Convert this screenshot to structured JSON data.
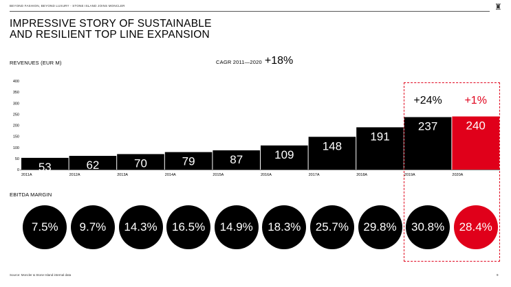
{
  "header": {
    "breadcrumb": "BEYOND FASHION, BEYOND LUXURY - STONE ISLAND JOINS MONCLER",
    "logo_icon": "moncler-rooster-icon"
  },
  "title": {
    "line1": "IMPRESSIVE STORY OF SUSTAINABLE",
    "line2": "AND RESILIENT TOP LINE EXPANSION"
  },
  "revenues_label": "REVENUES (EUR M)",
  "cagr": {
    "label": "CAGR 2011—2020",
    "value": "+18%"
  },
  "ebitda_label": "EBITDA MARGIN",
  "ebitda_values": [
    "7.5%",
    "9.7%",
    "14.3%",
    "16.5%",
    "14.9%",
    "18.3%",
    "25.7%",
    "29.8%",
    "30.8%",
    "28.4%"
  ],
  "growth_labels": {
    "y2019": "+24%",
    "y2020": "+1%"
  },
  "footer": {
    "source": "Source: Moncler & Stone Island internal data",
    "page": "9"
  },
  "colors": {
    "bar": "#000000",
    "highlight": "#e0001a",
    "text": "#000000"
  },
  "chart_data": {
    "type": "bar",
    "categories": [
      "2011A",
      "2012A",
      "2013A",
      "2014A",
      "2015A",
      "2016A",
      "2017A",
      "2018A",
      "2019A",
      "2020A"
    ],
    "values": [
      53,
      62,
      70,
      79,
      87,
      109,
      148,
      191,
      237,
      240
    ],
    "data_labels": [
      "53",
      "62",
      "70",
      "79",
      "87",
      "109",
      "148",
      "191",
      "237",
      "240"
    ],
    "ylim": [
      0,
      400
    ],
    "yticks": [
      0,
      50,
      100,
      150,
      200,
      250,
      300,
      350,
      400
    ],
    "ylabel": "REVENUES (EUR M)",
    "highlight_category": "2020A",
    "grid": false
  }
}
